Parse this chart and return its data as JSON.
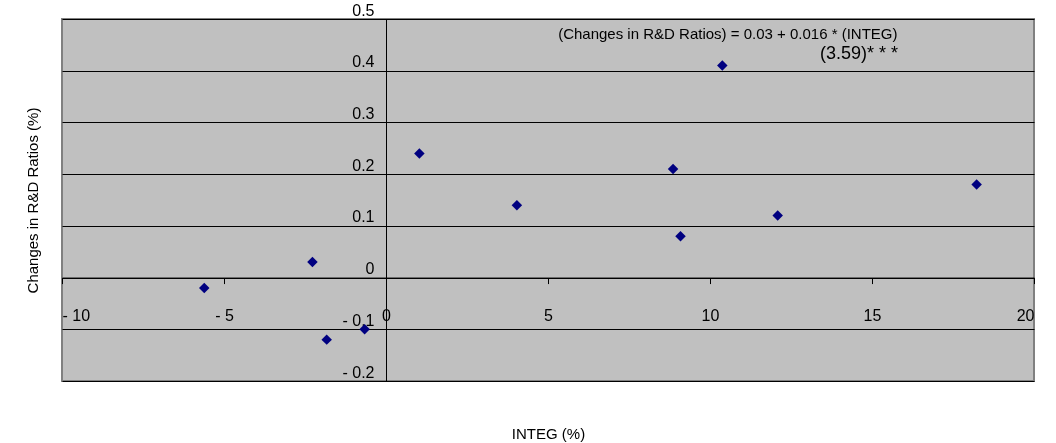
{
  "chart_data": {
    "type": "scatter",
    "xlabel": "INTEG (%)",
    "ylabel": "Changes in R&D Ratios (%)",
    "annotations": [
      "(Changes in R&D Ratios) = 0.03 + 0.016 *  (INTEG)",
      "(3.59)* * *"
    ],
    "x": [
      -5.61,
      -2.27,
      -1.83,
      -0.66,
      1.03,
      4.04,
      10.38,
      8.86,
      9.09,
      12.09,
      18.23
    ],
    "series": [
      {
        "color": "#000080",
        "values": [
          -0.02,
          0.03,
          -0.12,
          -0.1,
          0.24,
          0.14,
          0.41,
          0.21,
          0.08,
          0.12,
          0.18
        ]
      }
    ],
    "xlim": [
      -10,
      20
    ],
    "ylim": [
      -0.2,
      0.5
    ],
    "xticks": [
      {
        "value": -10,
        "label": "- 10"
      },
      {
        "value": -5,
        "label": "- 5"
      },
      0,
      5,
      10,
      15,
      20
    ],
    "yticks": [
      {
        "value": -0.2,
        "label": "- 0.2"
      },
      {
        "value": -0.1,
        "label": "- 0.1"
      },
      0,
      0.1,
      0.2,
      0.3,
      0.4,
      0.5
    ],
    "grid": "y",
    "marker": "diamond"
  }
}
